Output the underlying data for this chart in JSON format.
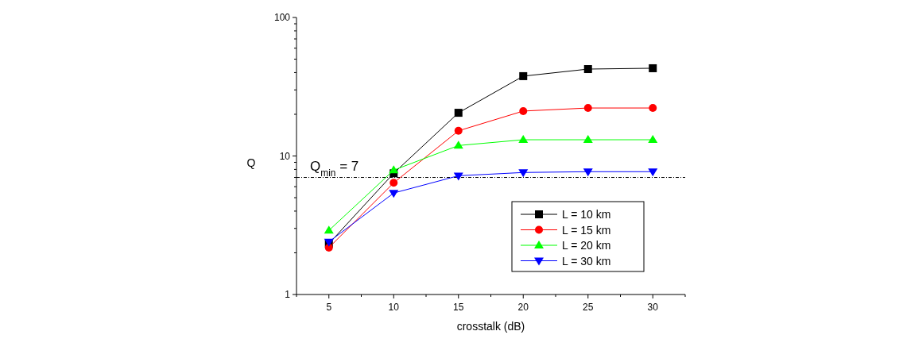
{
  "chart_data": {
    "type": "line",
    "xlabel": "crosstalk (dB)",
    "ylabel": "Q",
    "log": "y",
    "x": [
      5,
      10,
      15,
      20,
      25,
      30
    ],
    "xlim": [
      2.5,
      32.5
    ],
    "xticks": [
      {
        "value": 2.5,
        "label": null
      },
      5,
      {
        "value": 7.5,
        "label": null
      },
      10,
      {
        "value": 12.5,
        "label": null
      },
      15,
      {
        "value": 17.5,
        "label": null
      },
      20,
      {
        "value": 22.5,
        "label": null
      },
      25,
      {
        "value": 27.5,
        "label": null
      },
      30,
      {
        "value": 32.5,
        "label": null
      }
    ],
    "ylim": [
      1,
      100
    ],
    "yticks": [
      1,
      {
        "value": 2,
        "label": null
      },
      {
        "value": 3,
        "label": null
      },
      {
        "value": 4,
        "label": null
      },
      {
        "value": 5,
        "label": null
      },
      {
        "value": 6,
        "label": null
      },
      {
        "value": 7,
        "label": null
      },
      {
        "value": 8,
        "label": null
      },
      {
        "value": 9,
        "label": null
      },
      10,
      {
        "value": 20,
        "label": null
      },
      {
        "value": 30,
        "label": null
      },
      {
        "value": 40,
        "label": null
      },
      {
        "value": 50,
        "label": null
      },
      {
        "value": 60,
        "label": null
      },
      {
        "value": 70,
        "label": null
      },
      {
        "value": 80,
        "label": null
      },
      {
        "value": 90,
        "label": null
      },
      100
    ],
    "series": [
      {
        "name": "L = 10 km",
        "color": "#000000",
        "marker": "square",
        "values": [
          2.33,
          7.5,
          20.5,
          37.7,
          42.4,
          43
        ]
      },
      {
        "name": "L = 15 km",
        "color": "#ff0000",
        "marker": "circle",
        "values": [
          2.18,
          6.4,
          15.2,
          21.1,
          22.2,
          22.2
        ]
      },
      {
        "name": "L = 20 km",
        "color": "#00ff00",
        "marker": "triangle",
        "values": [
          2.9,
          7.9,
          11.9,
          13.1,
          13.1,
          13.1
        ]
      },
      {
        "name": "L = 30 km",
        "color": "#0000ff",
        "marker": "triangle-down",
        "values": [
          2.4,
          5.4,
          7.2,
          7.6,
          7.7,
          7.7
        ]
      }
    ],
    "ref_lines": [
      {
        "axis": "y",
        "value": 7,
        "label": "Q$_{min}$ = 7",
        "color": "#000000",
        "line_style": "dashdot"
      }
    ],
    "legend": "bottom right",
    "grid": false
  }
}
